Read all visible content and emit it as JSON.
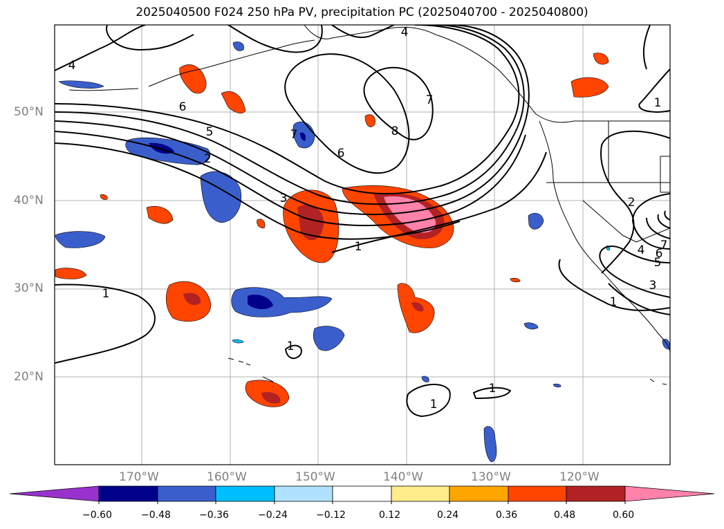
{
  "title": "2025040500 F024 250 hPa PV, precipitation PC (2025040700 - 2025040800)",
  "lat_labels": [
    "50°N",
    "40°N",
    "30°N",
    "20°N"
  ],
  "lon_labels": [
    "170°W",
    "160°W",
    "150°W",
    "140°W",
    "130°W",
    "120°W"
  ],
  "contour_labels": [
    "4",
    "6",
    "5",
    "2",
    "3",
    "7",
    "6",
    "8",
    "7",
    "1",
    "1",
    "1",
    "1",
    "1",
    "2",
    "3",
    "4",
    "5",
    "6",
    "7",
    "1",
    "1",
    "4"
  ],
  "colorbar": {
    "ticks": [
      "−0.60",
      "−0.48",
      "−0.36",
      "−0.24",
      "−0.12",
      "0.12",
      "0.24",
      "0.36",
      "0.48",
      "0.60"
    ],
    "colors": [
      "#9932cc",
      "#00008b",
      "#3a5fcd",
      "#00bfff",
      "#b0e2ff",
      "#ffffff",
      "#ffec8b",
      "#ffa500",
      "#ff4500",
      "#b22222",
      "#ff82ab"
    ]
  }
}
